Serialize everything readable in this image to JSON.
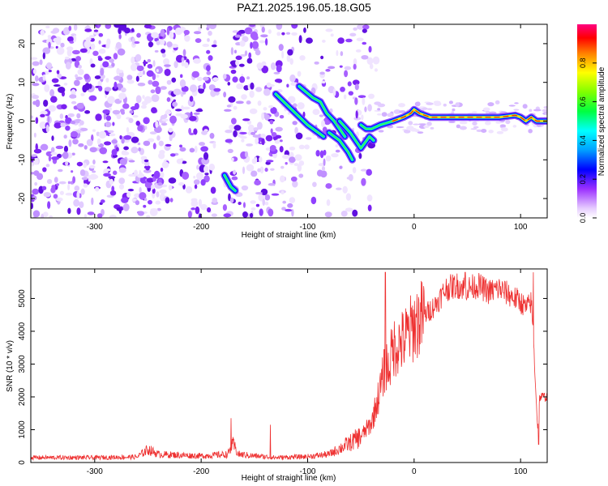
{
  "title": "PAZ1.2025.196.05.18.G05",
  "chart_data": [
    {
      "type": "heatmap",
      "xlabel": "Height of straight line (km)",
      "ylabel": "Frequency (Hz)",
      "xlim": [
        -360,
        125
      ],
      "ylim": [
        -25,
        25
      ],
      "xticks": [
        -300,
        -200,
        -100,
        0,
        100
      ],
      "yticks": [
        -20,
        -10,
        0,
        10,
        20
      ],
      "colorbar": {
        "label": "Normalized spectral amplitude",
        "range": [
          0,
          1
        ],
        "ticks": [
          "0.0",
          "0.2",
          "0.4",
          "0.6",
          "0.8"
        ]
      },
      "tracks": [
        {
          "x": [
            -178,
            -172,
            -168
          ],
          "y": [
            -14,
            -17,
            -18
          ]
        },
        {
          "x": [
            -130,
            -115,
            -100,
            -90,
            -85
          ],
          "y": [
            7,
            3,
            -1,
            -3,
            -4
          ]
        },
        {
          "x": [
            -108,
            -95,
            -88,
            -82,
            -75,
            -70,
            -65
          ],
          "y": [
            9,
            6,
            5,
            2,
            0,
            -2,
            -4
          ]
        },
        {
          "x": [
            -80,
            -70,
            -62,
            -58
          ],
          "y": [
            -3,
            -5,
            -8,
            -10
          ]
        },
        {
          "x": [
            -70,
            -60,
            -55,
            -50,
            -42,
            -38
          ],
          "y": [
            0,
            -3,
            -5,
            -7,
            -4,
            -5
          ]
        },
        {
          "x": [
            -50,
            -45,
            -40,
            -32,
            -20,
            -10,
            -3,
            0,
            5,
            15,
            40,
            80,
            95,
            100,
            105,
            110,
            115,
            125
          ],
          "y": [
            -1,
            -2,
            -2,
            -1,
            0,
            1,
            2,
            3,
            2,
            1,
            1,
            1,
            1.5,
            1,
            0,
            1,
            0,
            0
          ]
        }
      ]
    },
    {
      "type": "line",
      "xlabel": "Height of straight line (km)",
      "ylabel": "SNR (10 * v/v)",
      "xlim": [
        -360,
        125
      ],
      "ylim": [
        0,
        5900
      ],
      "xticks": [
        -300,
        -200,
        -100,
        0,
        100
      ],
      "yticks": [
        0,
        1000,
        2000,
        3000,
        4000,
        5000
      ],
      "color": "#ee3030",
      "series": [
        {
          "x": [
            -360,
            -300,
            -260,
            -250,
            -240,
            -200,
            -175,
            -170,
            -165,
            -150,
            -130,
            -100,
            -80,
            -60,
            -50,
            -40,
            -32,
            -28,
            -26,
            -24,
            -20,
            -10,
            0,
            10,
            20,
            30,
            40,
            50,
            60,
            70,
            80,
            90,
            100,
            105,
            108,
            110,
            112,
            116,
            118,
            120,
            125
          ],
          "y": [
            150,
            150,
            170,
            400,
            250,
            200,
            250,
            550,
            250,
            200,
            150,
            180,
            250,
            600,
            800,
            1200,
            2200,
            2800,
            3000,
            2800,
            3500,
            3700,
            4200,
            4500,
            4800,
            5300,
            5400,
            5300,
            5400,
            5200,
            5300,
            5100,
            4900,
            4700,
            4800,
            4900,
            3800,
            1000,
            2000,
            2000,
            2000
          ],
          "spikes": [
            {
              "x": -27,
              "y": 5800
            },
            {
              "x": -172,
              "y": 1350
            },
            {
              "x": -135,
              "y": 1150
            },
            {
              "x": 48,
              "y": 5800
            },
            {
              "x": 112,
              "y": 5800
            },
            {
              "x": 117,
              "y": 550
            }
          ]
        }
      ]
    }
  ]
}
